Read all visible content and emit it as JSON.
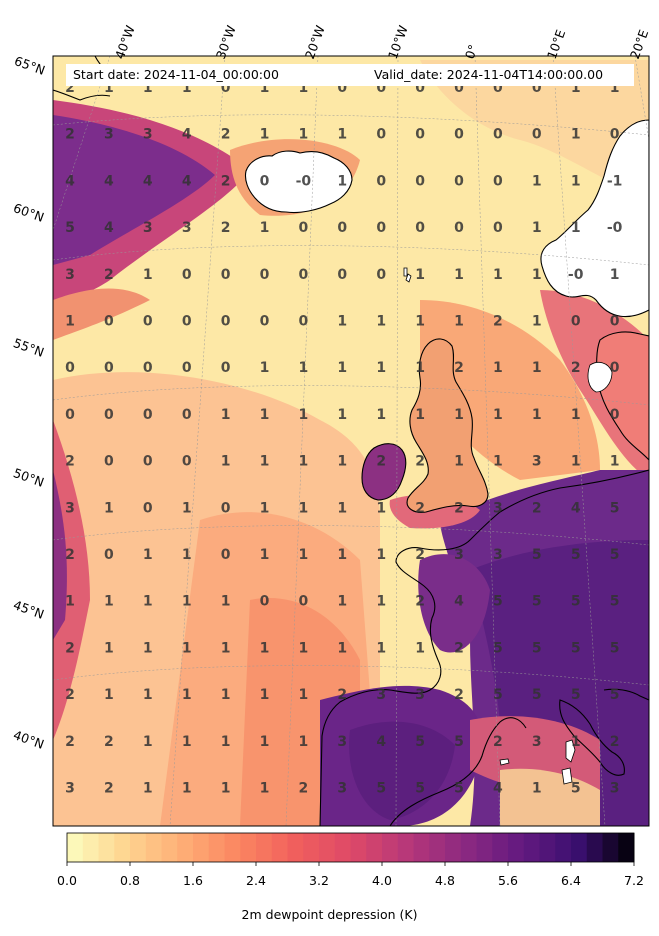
{
  "header": {
    "start": "Start date: 2024-11-04_00:00:00",
    "valid": "Valid_date: 2024-11-04T14:00:00.00"
  },
  "lon_labels": [
    "40°W",
    "30°W",
    "20°W",
    "10°W",
    "0°",
    "10°E",
    "20°E"
  ],
  "lat_labels": [
    "65°N",
    "60°N",
    "55°N",
    "50°N",
    "45°N",
    "40°N"
  ],
  "colorbar": {
    "label": "2m dewpoint depression (K)",
    "min": 0.0,
    "max": 7.2,
    "ticks": [
      "0.0",
      "0.8",
      "1.6",
      "2.4",
      "3.2",
      "4.0",
      "4.8",
      "5.6",
      "6.4",
      "7.2"
    ],
    "colormap": "magma_r"
  },
  "grid_values": [
    [
      "2",
      "1",
      "1",
      "1",
      "0",
      "1",
      "1",
      "0",
      "0",
      "0",
      "0",
      "0",
      "0",
      "1",
      "1"
    ],
    [
      "2",
      "3",
      "3",
      "4",
      "2",
      "1",
      "1",
      "1",
      "0",
      "0",
      "0",
      "0",
      "0",
      "1",
      "0"
    ],
    [
      "4",
      "4",
      "4",
      "4",
      "2",
      "0",
      "-0",
      "1",
      "0",
      "0",
      "0",
      "0",
      "1",
      "1",
      "-1"
    ],
    [
      "5",
      "4",
      "3",
      "3",
      "2",
      "1",
      "0",
      "0",
      "0",
      "0",
      "0",
      "0",
      "1",
      "1",
      "-0"
    ],
    [
      "3",
      "2",
      "1",
      "0",
      "0",
      "0",
      "0",
      "0",
      "0",
      "1",
      "1",
      "1",
      "1",
      "-0",
      "1"
    ],
    [
      "1",
      "0",
      "0",
      "0",
      "0",
      "0",
      "0",
      "1",
      "1",
      "1",
      "1",
      "2",
      "1",
      "0",
      "0"
    ],
    [
      "0",
      "0",
      "0",
      "0",
      "0",
      "1",
      "1",
      "1",
      "1",
      "1",
      "2",
      "1",
      "1",
      "2",
      "0"
    ],
    [
      "0",
      "0",
      "0",
      "0",
      "1",
      "1",
      "1",
      "1",
      "1",
      "1",
      "1",
      "1",
      "1",
      "1",
      "0"
    ],
    [
      "2",
      "0",
      "0",
      "0",
      "1",
      "1",
      "1",
      "1",
      "2",
      "2",
      "1",
      "1",
      "3",
      "1",
      "1"
    ],
    [
      "3",
      "1",
      "0",
      "1",
      "0",
      "1",
      "1",
      "1",
      "1",
      "2",
      "2",
      "3",
      "2",
      "4",
      "5"
    ],
    [
      "2",
      "0",
      "1",
      "1",
      "0",
      "1",
      "1",
      "1",
      "1",
      "2",
      "3",
      "3",
      "5",
      "5",
      "5"
    ],
    [
      "1",
      "1",
      "1",
      "1",
      "1",
      "0",
      "0",
      "1",
      "1",
      "2",
      "4",
      "5",
      "5",
      "5",
      "5"
    ],
    [
      "2",
      "1",
      "1",
      "1",
      "1",
      "1",
      "1",
      "1",
      "1",
      "1",
      "2",
      "5",
      "5",
      "5",
      "5"
    ],
    [
      "2",
      "1",
      "1",
      "1",
      "1",
      "1",
      "1",
      "2",
      "3",
      "3",
      "2",
      "5",
      "5",
      "5",
      "5"
    ],
    [
      "2",
      "2",
      "1",
      "1",
      "1",
      "1",
      "1",
      "3",
      "4",
      "5",
      "5",
      "2",
      "3",
      "1",
      "2"
    ],
    [
      "3",
      "2",
      "1",
      "1",
      "1",
      "1",
      "2",
      "3",
      "5",
      "5",
      "5",
      "4",
      "1",
      "5",
      "3"
    ]
  ],
  "features": {
    "land_color": "#ffffff",
    "coastline_color": "#000000",
    "text_color": "#333333"
  }
}
